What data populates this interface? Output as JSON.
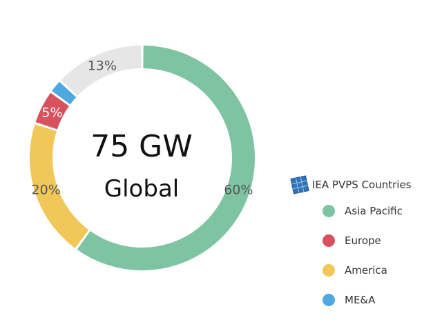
{
  "center": {
    "value": "75 GW",
    "label": "Global"
  },
  "legend": {
    "title": "IEA PVPS Countries",
    "icon": "solar-panel-icon"
  },
  "chart_data": {
    "type": "pie",
    "variant": "donut",
    "title": "",
    "legend_placement": "right",
    "slices": [
      {
        "name": "Asia Pacific",
        "value": 60,
        "label": "60%",
        "color": "#7ec4a2"
      },
      {
        "name": "Europe",
        "value": 5,
        "label": "5%",
        "color": "#d8525e"
      },
      {
        "name": "America",
        "value": 20,
        "label": "20%",
        "color": "#f1c75a"
      },
      {
        "name": "ME&A",
        "value": 2,
        "label": "",
        "color": "#4fa9e0"
      },
      {
        "name": "",
        "value": 13,
        "label": "13%",
        "color": "#e6e6e6"
      }
    ],
    "draw_order": [
      "Asia Pacific",
      "America",
      "Europe",
      "ME&A",
      ""
    ]
  }
}
